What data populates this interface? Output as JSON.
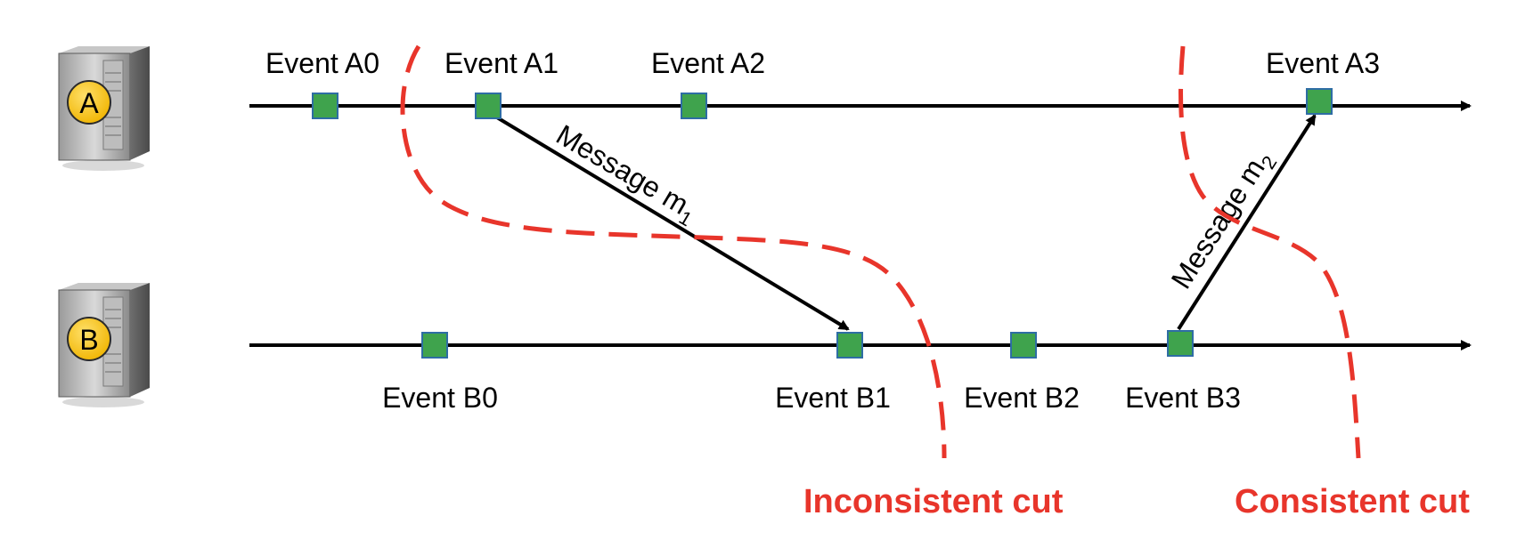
{
  "colors": {
    "event_fill": "#3fa34d",
    "event_stroke": "#2e6da4",
    "cut": "#e8352b",
    "timeline": "#000000",
    "server_badge": "#f5c518"
  },
  "icons": {
    "server": "server-icon"
  },
  "processes": [
    {
      "letter": "A",
      "events": [
        "Event A0",
        "Event A1",
        "Event A2",
        "Event A3"
      ]
    },
    {
      "letter": "B",
      "events": [
        "Event B0",
        "Event B1",
        "Event B2",
        "Event B3"
      ]
    }
  ],
  "messages": [
    {
      "prefix": "Message m",
      "subscript": "1",
      "from": "Event A1",
      "to": "Event B1"
    },
    {
      "prefix": "Message m",
      "subscript": "2",
      "from": "Event B3",
      "to": "Event A3"
    }
  ],
  "cuts": {
    "inconsistent": "Inconsistent cut",
    "consistent": "Consistent cut"
  }
}
